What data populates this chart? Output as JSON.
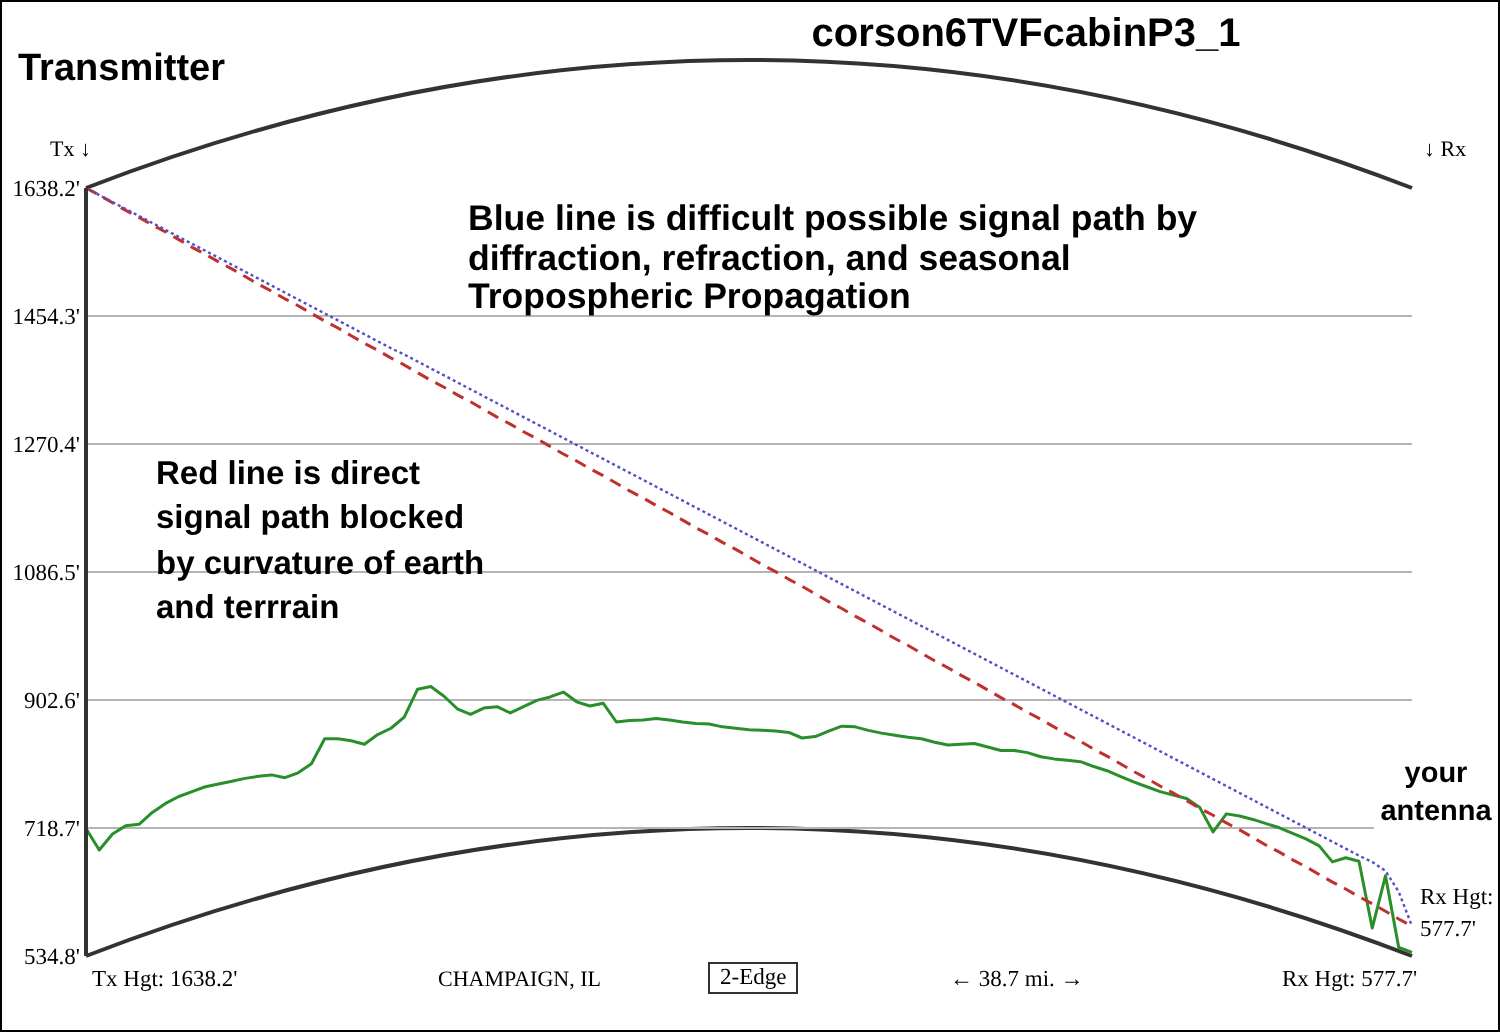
{
  "chart_data": {
    "type": "line",
    "title": "corson6TVFcabinP3_1",
    "annotations": [
      "Transmitter",
      "Tx ↓",
      "↓ Rx",
      "Blue line is difficult possible signal path by diffraction, refraction, and seasonal Tropospheric Propagation",
      "Red line is direct signal path blocked by curvature of earth and terrrain",
      "your antenna",
      "Tx Hgt: 1638.2'",
      "CHAMPAIGN, IL",
      "2-Edge",
      "← 38.7 mi. →",
      "Rx Hgt: 577.7'",
      "Rx Hgt: 577.7'"
    ],
    "categories": [
      null,
      null,
      null,
      null,
      null,
      null,
      null,
      null,
      null,
      null,
      null,
      null,
      null,
      null,
      null,
      null,
      null,
      null,
      null,
      null,
      null,
      null,
      null,
      null,
      null,
      null,
      null,
      null,
      null,
      null,
      null,
      null,
      null,
      null,
      null,
      null,
      null,
      null,
      null,
      null,
      null,
      null,
      null,
      null,
      null,
      null,
      null,
      null,
      null,
      null,
      null,
      null,
      null,
      null,
      null,
      null,
      null,
      null,
      null,
      null,
      null,
      null,
      null,
      null,
      null,
      null,
      null,
      null,
      null,
      null,
      null,
      null,
      null,
      null,
      null,
      null,
      null,
      null,
      null,
      null,
      null,
      null,
      null,
      null,
      null,
      null,
      null,
      null,
      null,
      null,
      null,
      null,
      null,
      null,
      null,
      null,
      null,
      null,
      null,
      null,
      null
    ],
    "ylim": [
      534.8,
      1638.2
    ],
    "yticks": [
      {
        "value": 534.8,
        "label": "534.8'"
      },
      {
        "value": 718.7,
        "label": "718.7'"
      },
      {
        "value": 902.6,
        "label": "902.6'"
      },
      {
        "value": 1086.5,
        "label": "1086.5'"
      },
      {
        "value": 1270.4,
        "label": "1270.4'"
      },
      {
        "value": 1454.3,
        "label": "1454.3'"
      },
      {
        "value": 1638.2,
        "label": "1638.2'"
      }
    ],
    "grid": "y",
    "tick_labels": "y",
    "series": [
      {
        "color": "#2a8f2a",
        "line_style": "solid",
        "values": [
          718,
          687,
          710,
          722,
          724,
          741,
          754,
          764,
          771,
          778,
          782,
          786,
          790,
          793,
          795,
          791,
          798,
          811,
          847,
          847,
          844,
          839,
          853,
          862,
          878,
          918,
          922,
          908,
          890,
          882,
          891,
          893,
          884,
          893,
          902,
          907,
          914,
          900,
          894,
          898,
          871,
          873,
          874,
          876,
          874,
          871,
          869,
          868,
          864,
          862,
          860,
          859,
          858,
          856,
          848,
          850,
          858,
          865,
          864,
          859,
          855,
          852,
          849,
          847,
          842,
          838,
          839,
          840,
          835,
          830,
          830,
          827,
          821,
          818,
          816,
          814,
          807,
          801,
          793,
          785,
          778,
          771,
          766,
          761,
          748,
          713,
          739,
          736,
          731,
          725,
          719,
          711,
          703,
          693,
          670,
          676,
          671,
          575,
          650,
          547,
          540
        ]
      },
      {
        "color": "#c0302f",
        "line_style": "dashed",
        "values": [
          1638.2,
          1628,
          1617,
          1606,
          1596,
          1585,
          1575,
          1564,
          1553,
          1543,
          1532,
          1522,
          1511,
          1500,
          1490,
          1479,
          1469,
          1458,
          1447,
          1437,
          1426,
          1415,
          1405,
          1394,
          1384,
          1373,
          1362,
          1352,
          1341,
          1331,
          1320,
          1309,
          1299,
          1288,
          1278,
          1267,
          1256,
          1246,
          1235,
          1225,
          1214,
          1203,
          1193,
          1182,
          1172,
          1161,
          1150,
          1140,
          1129,
          1119,
          1108,
          1097,
          1087,
          1076,
          1066,
          1055,
          1044,
          1034,
          1023,
          1013,
          1002,
          991,
          981,
          970,
          959,
          949,
          938,
          928,
          917,
          906,
          896,
          885,
          875,
          864,
          853,
          843,
          832,
          822,
          811,
          800,
          790,
          779,
          769,
          758,
          747,
          737,
          726,
          716,
          705,
          694,
          684,
          673,
          663,
          652,
          641,
          631,
          620,
          610,
          599,
          588,
          577.7
        ]
      },
      {
        "color": "#5050c8",
        "line_style": "dotted",
        "values": [
          1638.2,
          1628,
          1618,
          1608,
          1598,
          1588,
          1578,
          1568,
          1558,
          1548,
          1538,
          1528,
          1518,
          1508,
          1498,
          1488,
          1478,
          1468,
          1458,
          1448,
          1438,
          1428,
          1418,
          1408,
          1399,
          1389,
          1379,
          1369,
          1359,
          1349,
          1339,
          1329,
          1319,
          1309,
          1299,
          1289,
          1279,
          1269,
          1259,
          1249,
          1239,
          1229,
          1219,
          1209,
          1199,
          1189,
          1179,
          1169,
          1159,
          1149,
          1139,
          1129,
          1119,
          1109,
          1099,
          1089,
          1079,
          1069,
          1059,
          1049,
          1039,
          1029,
          1019,
          1009,
          999,
          989,
          979,
          969,
          959,
          949,
          939,
          929,
          919,
          909,
          899,
          889,
          879,
          869,
          859,
          849,
          839,
          829,
          819,
          809,
          799,
          789,
          779,
          769,
          759,
          749,
          739,
          729,
          719,
          709,
          699,
          689,
          679,
          670,
          657,
          627,
          577.7
        ]
      }
    ]
  }
}
